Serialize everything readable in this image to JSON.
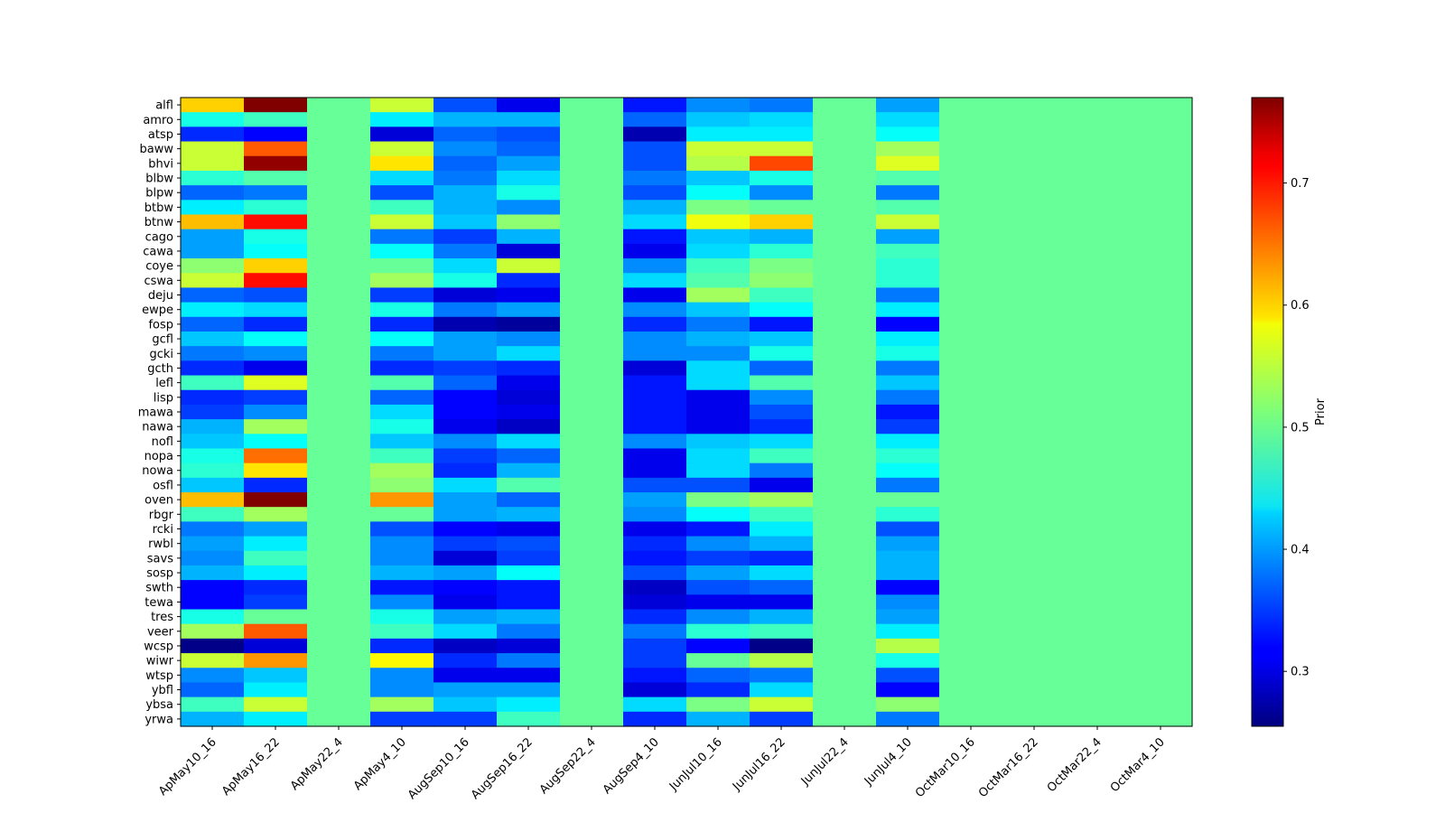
{
  "chart_data": {
    "type": "heatmap",
    "title": "",
    "xlabel": "",
    "ylabel": "",
    "colormap": "jet",
    "x_categories": [
      "ApMay10_16",
      "ApMay16_22",
      "ApMay22_4",
      "ApMay4_10",
      "AugSep10_16",
      "AugSep16_22",
      "AugSep22_4",
      "AugSep4_10",
      "JunJul10_16",
      "JunJul16_22",
      "JunJul22_4",
      "JunJul4_10",
      "OctMar10_16",
      "OctMar16_22",
      "OctMar22_4",
      "OctMar4_10"
    ],
    "y_categories": [
      "alfl",
      "amro",
      "atsp",
      "baww",
      "bhvi",
      "blbw",
      "blpw",
      "btbw",
      "btnw",
      "cago",
      "cawa",
      "coye",
      "cswa",
      "deju",
      "ewpe",
      "fosp",
      "gcfl",
      "gcki",
      "gcth",
      "lefl",
      "lisp",
      "mawa",
      "nawa",
      "nofl",
      "nopa",
      "nowa",
      "osfl",
      "oven",
      "rbgr",
      "rcki",
      "rwbl",
      "savs",
      "sosp",
      "swth",
      "tewa",
      "tres",
      "veer",
      "wcsp",
      "wiwr",
      "wtsp",
      "ybfl",
      "ybsa",
      "yrwa"
    ],
    "values": [
      [
        0.6,
        0.77,
        0.5,
        0.55,
        0.36,
        0.31,
        0.5,
        0.33,
        0.39,
        0.38,
        0.5,
        0.4,
        0.5,
        0.5,
        0.5,
        0.5
      ],
      [
        0.46,
        0.48,
        0.5,
        0.44,
        0.41,
        0.41,
        0.5,
        0.37,
        0.42,
        0.43,
        0.5,
        0.43,
        0.5,
        0.5,
        0.5,
        0.5
      ],
      [
        0.34,
        0.32,
        0.5,
        0.3,
        0.37,
        0.36,
        0.5,
        0.28,
        0.44,
        0.44,
        0.5,
        0.45,
        0.5,
        0.5,
        0.5,
        0.5
      ],
      [
        0.55,
        0.66,
        0.5,
        0.55,
        0.39,
        0.37,
        0.5,
        0.36,
        0.55,
        0.55,
        0.5,
        0.53,
        0.5,
        0.5,
        0.5,
        0.5
      ],
      [
        0.55,
        0.76,
        0.5,
        0.59,
        0.37,
        0.4,
        0.5,
        0.36,
        0.54,
        0.67,
        0.5,
        0.56,
        0.5,
        0.5,
        0.5,
        0.5
      ],
      [
        0.47,
        0.49,
        0.5,
        0.43,
        0.38,
        0.43,
        0.5,
        0.38,
        0.42,
        0.46,
        0.5,
        0.49,
        0.5,
        0.5,
        0.5,
        0.5
      ],
      [
        0.37,
        0.38,
        0.5,
        0.36,
        0.41,
        0.46,
        0.5,
        0.36,
        0.45,
        0.39,
        0.5,
        0.38,
        0.5,
        0.5,
        0.5,
        0.5
      ],
      [
        0.44,
        0.47,
        0.5,
        0.48,
        0.41,
        0.39,
        0.5,
        0.41,
        0.51,
        0.5,
        0.5,
        0.49,
        0.5,
        0.5,
        0.5,
        0.5
      ],
      [
        0.61,
        0.7,
        0.5,
        0.55,
        0.42,
        0.52,
        0.5,
        0.43,
        0.57,
        0.6,
        0.5,
        0.55,
        0.5,
        0.5,
        0.5,
        0.5
      ],
      [
        0.4,
        0.46,
        0.5,
        0.38,
        0.35,
        0.41,
        0.5,
        0.33,
        0.42,
        0.41,
        0.5,
        0.4,
        0.5,
        0.5,
        0.5,
        0.5
      ],
      [
        0.4,
        0.45,
        0.5,
        0.45,
        0.38,
        0.3,
        0.5,
        0.31,
        0.43,
        0.47,
        0.5,
        0.48,
        0.5,
        0.5,
        0.5,
        0.5
      ],
      [
        0.52,
        0.6,
        0.5,
        0.5,
        0.43,
        0.55,
        0.5,
        0.39,
        0.48,
        0.51,
        0.5,
        0.47,
        0.5,
        0.5,
        0.5,
        0.5
      ],
      [
        0.55,
        0.7,
        0.5,
        0.53,
        0.46,
        0.34,
        0.5,
        0.43,
        0.49,
        0.52,
        0.5,
        0.47,
        0.5,
        0.5,
        0.5,
        0.5
      ],
      [
        0.37,
        0.36,
        0.5,
        0.35,
        0.3,
        0.31,
        0.5,
        0.31,
        0.53,
        0.48,
        0.5,
        0.38,
        0.5,
        0.5,
        0.5,
        0.5
      ],
      [
        0.44,
        0.43,
        0.5,
        0.46,
        0.38,
        0.4,
        0.5,
        0.39,
        0.42,
        0.45,
        0.5,
        0.44,
        0.5,
        0.5,
        0.5,
        0.5
      ],
      [
        0.37,
        0.34,
        0.5,
        0.34,
        0.28,
        0.27,
        0.5,
        0.34,
        0.38,
        0.33,
        0.5,
        0.32,
        0.5,
        0.5,
        0.5,
        0.5
      ],
      [
        0.42,
        0.45,
        0.5,
        0.45,
        0.4,
        0.39,
        0.5,
        0.39,
        0.41,
        0.42,
        0.5,
        0.44,
        0.5,
        0.5,
        0.5,
        0.5
      ],
      [
        0.38,
        0.39,
        0.5,
        0.38,
        0.4,
        0.43,
        0.5,
        0.39,
        0.39,
        0.46,
        0.5,
        0.46,
        0.5,
        0.5,
        0.5,
        0.5
      ],
      [
        0.34,
        0.31,
        0.5,
        0.34,
        0.35,
        0.34,
        0.5,
        0.3,
        0.43,
        0.37,
        0.5,
        0.38,
        0.5,
        0.5,
        0.5,
        0.5
      ],
      [
        0.48,
        0.56,
        0.5,
        0.49,
        0.37,
        0.31,
        0.5,
        0.33,
        0.43,
        0.49,
        0.5,
        0.42,
        0.5,
        0.5,
        0.5,
        0.5
      ],
      [
        0.34,
        0.35,
        0.5,
        0.37,
        0.32,
        0.3,
        0.5,
        0.33,
        0.31,
        0.39,
        0.5,
        0.38,
        0.5,
        0.5,
        0.5,
        0.5
      ],
      [
        0.35,
        0.39,
        0.5,
        0.43,
        0.32,
        0.31,
        0.5,
        0.33,
        0.31,
        0.36,
        0.5,
        0.33,
        0.5,
        0.5,
        0.5,
        0.5
      ],
      [
        0.41,
        0.53,
        0.5,
        0.46,
        0.31,
        0.29,
        0.5,
        0.33,
        0.31,
        0.34,
        0.5,
        0.35,
        0.5,
        0.5,
        0.5,
        0.5
      ],
      [
        0.42,
        0.45,
        0.5,
        0.42,
        0.39,
        0.43,
        0.5,
        0.39,
        0.42,
        0.43,
        0.5,
        0.44,
        0.5,
        0.5,
        0.5,
        0.5
      ],
      [
        0.46,
        0.65,
        0.5,
        0.48,
        0.35,
        0.37,
        0.5,
        0.31,
        0.43,
        0.48,
        0.5,
        0.47,
        0.5,
        0.5,
        0.5,
        0.5
      ],
      [
        0.47,
        0.59,
        0.5,
        0.53,
        0.34,
        0.41,
        0.5,
        0.31,
        0.43,
        0.38,
        0.5,
        0.45,
        0.5,
        0.5,
        0.5,
        0.5
      ],
      [
        0.42,
        0.34,
        0.5,
        0.52,
        0.43,
        0.49,
        0.5,
        0.36,
        0.36,
        0.31,
        0.5,
        0.38,
        0.5,
        0.5,
        0.5,
        0.5
      ],
      [
        0.61,
        0.77,
        0.5,
        0.63,
        0.4,
        0.37,
        0.5,
        0.4,
        0.51,
        0.53,
        0.5,
        0.5,
        0.5,
        0.5,
        0.5,
        0.5
      ],
      [
        0.48,
        0.53,
        0.5,
        0.5,
        0.4,
        0.41,
        0.5,
        0.39,
        0.45,
        0.48,
        0.5,
        0.47,
        0.5,
        0.5,
        0.5,
        0.5
      ],
      [
        0.38,
        0.4,
        0.5,
        0.36,
        0.32,
        0.31,
        0.5,
        0.31,
        0.33,
        0.44,
        0.5,
        0.36,
        0.5,
        0.5,
        0.5,
        0.5
      ],
      [
        0.4,
        0.44,
        0.5,
        0.39,
        0.35,
        0.36,
        0.5,
        0.34,
        0.39,
        0.41,
        0.5,
        0.4,
        0.5,
        0.5,
        0.5,
        0.5
      ],
      [
        0.39,
        0.48,
        0.5,
        0.39,
        0.3,
        0.35,
        0.5,
        0.33,
        0.35,
        0.34,
        0.5,
        0.41,
        0.5,
        0.5,
        0.5,
        0.5
      ],
      [
        0.41,
        0.44,
        0.5,
        0.41,
        0.4,
        0.45,
        0.5,
        0.36,
        0.4,
        0.43,
        0.5,
        0.41,
        0.5,
        0.5,
        0.5,
        0.5
      ],
      [
        0.32,
        0.34,
        0.5,
        0.33,
        0.32,
        0.33,
        0.5,
        0.29,
        0.36,
        0.37,
        0.5,
        0.32,
        0.5,
        0.5,
        0.5,
        0.5
      ],
      [
        0.32,
        0.35,
        0.5,
        0.39,
        0.31,
        0.33,
        0.5,
        0.3,
        0.31,
        0.31,
        0.5,
        0.39,
        0.5,
        0.5,
        0.5,
        0.5
      ],
      [
        0.46,
        0.5,
        0.5,
        0.46,
        0.4,
        0.41,
        0.5,
        0.34,
        0.39,
        0.41,
        0.5,
        0.4,
        0.5,
        0.5,
        0.5,
        0.5
      ],
      [
        0.53,
        0.66,
        0.5,
        0.48,
        0.43,
        0.38,
        0.5,
        0.38,
        0.47,
        0.48,
        0.5,
        0.44,
        0.5,
        0.5,
        0.5,
        0.5
      ],
      [
        0.26,
        0.3,
        0.5,
        0.34,
        0.29,
        0.3,
        0.5,
        0.35,
        0.32,
        0.26,
        0.5,
        0.54,
        0.5,
        0.5,
        0.5,
        0.5
      ],
      [
        0.55,
        0.63,
        0.5,
        0.58,
        0.34,
        0.38,
        0.5,
        0.35,
        0.5,
        0.54,
        0.5,
        0.46,
        0.5,
        0.5,
        0.5,
        0.5
      ],
      [
        0.39,
        0.42,
        0.5,
        0.39,
        0.31,
        0.31,
        0.5,
        0.33,
        0.37,
        0.38,
        0.5,
        0.36,
        0.5,
        0.5,
        0.5,
        0.5
      ],
      [
        0.37,
        0.44,
        0.5,
        0.39,
        0.4,
        0.4,
        0.5,
        0.3,
        0.34,
        0.43,
        0.5,
        0.32,
        0.5,
        0.5,
        0.5,
        0.5
      ],
      [
        0.48,
        0.55,
        0.5,
        0.53,
        0.42,
        0.44,
        0.5,
        0.43,
        0.51,
        0.55,
        0.5,
        0.52,
        0.5,
        0.5,
        0.5,
        0.5
      ],
      [
        0.41,
        0.44,
        0.5,
        0.35,
        0.35,
        0.48,
        0.5,
        0.34,
        0.41,
        0.35,
        0.5,
        0.38,
        0.5,
        0.5,
        0.5,
        0.5
      ]
    ],
    "colorbar": {
      "label": "Prior",
      "vmin": 0.255,
      "vmax": 0.77,
      "ticks": [
        0.3,
        0.4,
        0.5,
        0.6,
        0.7
      ],
      "tick_labels": [
        "0.3",
        "0.4",
        "0.5",
        "0.6",
        "0.7"
      ]
    }
  }
}
